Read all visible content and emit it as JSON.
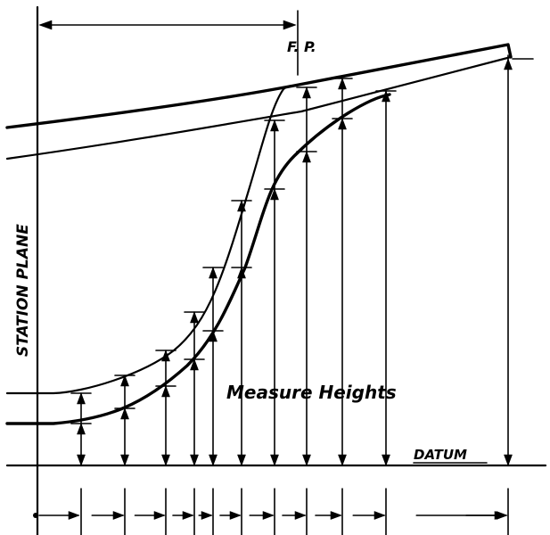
{
  "labels": {
    "fp": "F. P.",
    "station_plane": "STATION PLANE",
    "measure_heights": "Measure Heights",
    "datum": "DATUM"
  }
}
